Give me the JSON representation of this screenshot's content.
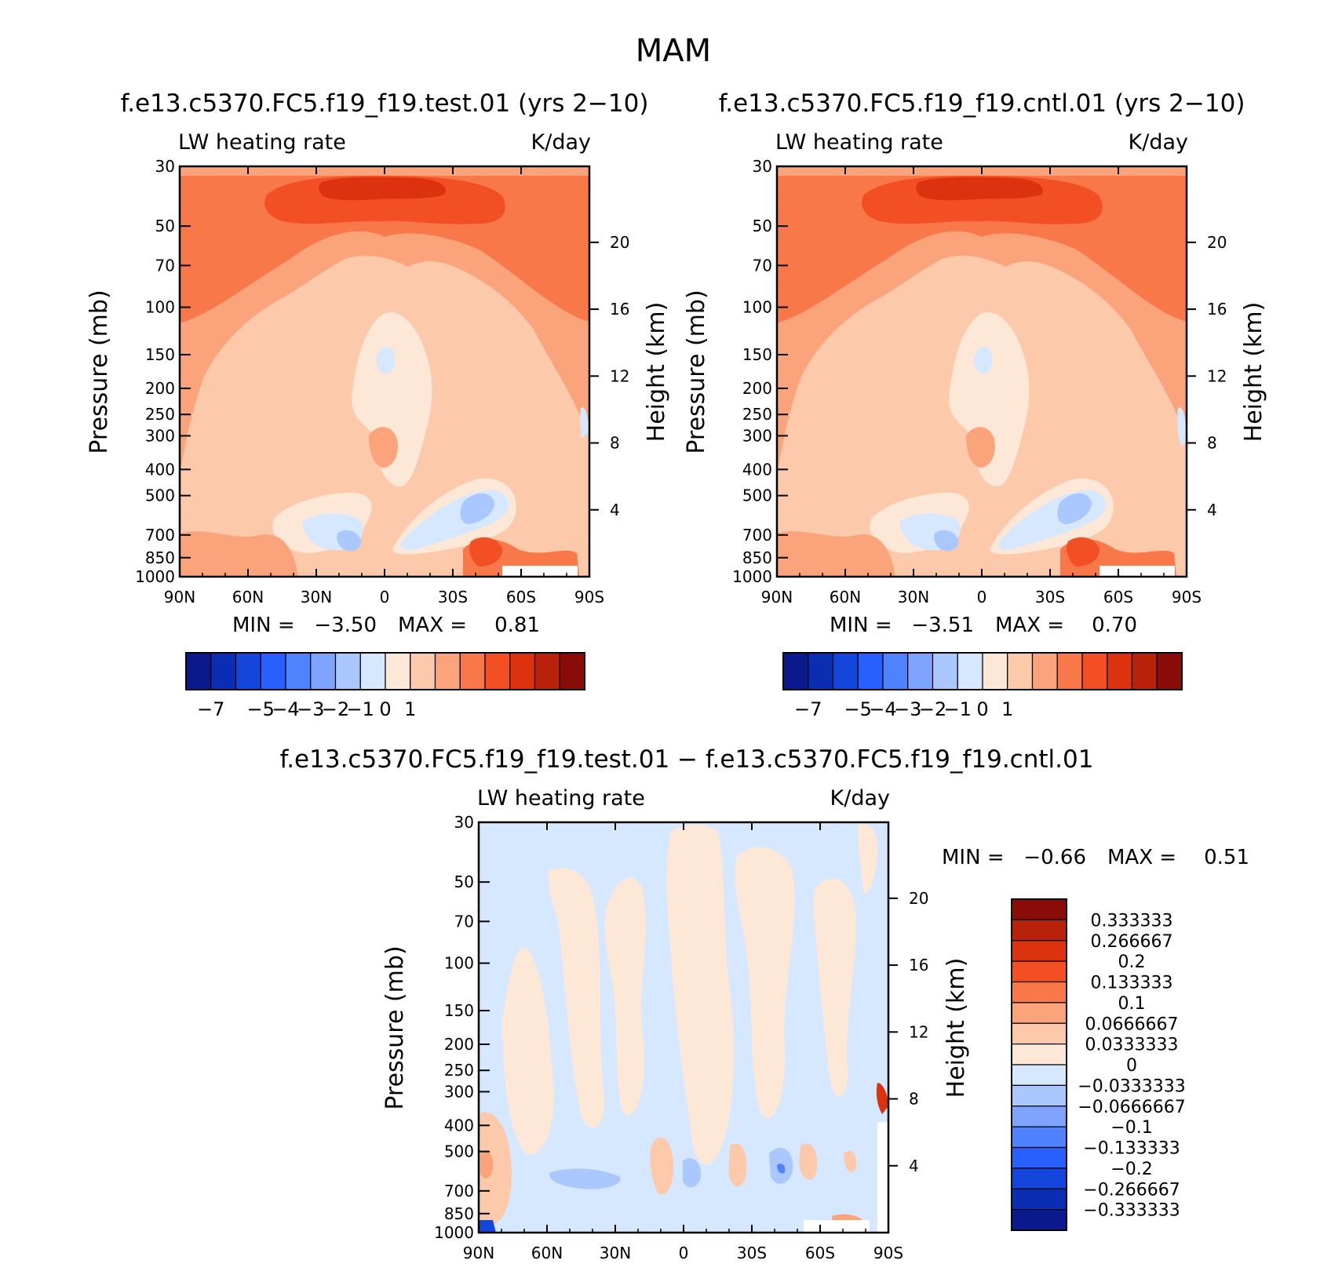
{
  "figure_title": "MAM",
  "chart_data": [
    {
      "type": "contour",
      "title": "f.e13.c5370.FC5.f19_f19.test.01 (yrs 2−10)",
      "left_label": "LW heating rate",
      "right_label": "K/day",
      "xlabel": "",
      "ylabel": "Pressure (mb)",
      "y2label": "Height (km)",
      "x_ticks": [
        "90N",
        "60N",
        "30N",
        "0",
        "30S",
        "60S",
        "90S"
      ],
      "y_ticks": [
        "30",
        "50",
        "70",
        "100",
        "150",
        "200",
        "250",
        "300",
        "400",
        "500",
        "700",
        "850",
        "1000"
      ],
      "y2_ticks": [
        "20",
        "16",
        "12",
        "8",
        "4"
      ],
      "min_label": "MIN =",
      "min_value": "−3.50",
      "max_label": "MAX =",
      "max_value": "0.81",
      "colorbar_labels": [
        "−7",
        "−5",
        "−4",
        "−3",
        "−2",
        "−1",
        "0",
        "1"
      ]
    },
    {
      "type": "contour",
      "title": "f.e13.c5370.FC5.f19_f19.cntl.01 (yrs 2−10)",
      "left_label": "LW heating rate",
      "right_label": "K/day",
      "xlabel": "",
      "ylabel": "Pressure (mb)",
      "y2label": "Height (km)",
      "x_ticks": [
        "90N",
        "60N",
        "30N",
        "0",
        "30S",
        "60S",
        "90S"
      ],
      "y_ticks": [
        "30",
        "50",
        "70",
        "100",
        "150",
        "200",
        "250",
        "300",
        "400",
        "500",
        "700",
        "850",
        "1000"
      ],
      "y2_ticks": [
        "20",
        "16",
        "12",
        "8",
        "4"
      ],
      "min_label": "MIN =",
      "min_value": "−3.51",
      "max_label": "MAX =",
      "max_value": "0.70",
      "colorbar_labels": [
        "−7",
        "−5",
        "−4",
        "−3",
        "−2",
        "−1",
        "0",
        "1"
      ]
    },
    {
      "type": "contour",
      "title": "f.e13.c5370.FC5.f19_f19.test.01 − f.e13.c5370.FC5.f19_f19.cntl.01",
      "left_label": "LW heating rate",
      "right_label": "K/day",
      "xlabel": "",
      "ylabel": "Pressure (mb)",
      "y2label": "Height (km)",
      "x_ticks": [
        "90N",
        "60N",
        "30N",
        "0",
        "30S",
        "60S",
        "90S"
      ],
      "y_ticks": [
        "30",
        "50",
        "70",
        "100",
        "150",
        "200",
        "250",
        "300",
        "400",
        "500",
        "700",
        "850",
        "1000"
      ],
      "y2_ticks": [
        "20",
        "16",
        "12",
        "8",
        "4"
      ],
      "min_label": "MIN =",
      "min_value": "−0.66",
      "max_label": "MAX =",
      "max_value": "0.51",
      "colorbar_labels": [
        "0.333333",
        "0.266667",
        "0.2",
        "0.133333",
        "0.1",
        "0.0666667",
        "0.0333333",
        "0",
        "−0.0333333",
        "−0.0666667",
        "−0.1",
        "−0.133333",
        "−0.2",
        "−0.266667",
        "−0.333333"
      ]
    }
  ],
  "colors": {
    "scale": [
      "#0a1a8c",
      "#0a2db4",
      "#1446dc",
      "#285fff",
      "#4f82ff",
      "#7ea4ff",
      "#aac7ff",
      "#d6e8ff",
      "#fde7d6",
      "#fcc9ab",
      "#fba47b",
      "#f9784a",
      "#f34f24",
      "#dc3210",
      "#b8220a",
      "#8a0c08"
    ]
  }
}
